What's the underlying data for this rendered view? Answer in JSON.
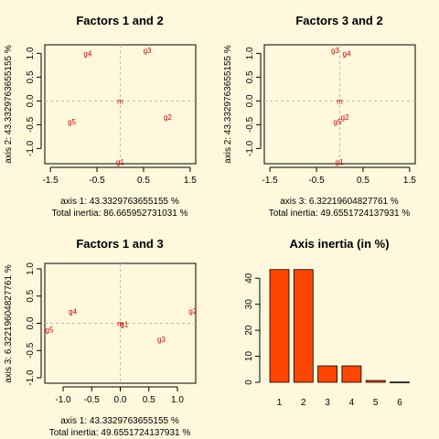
{
  "chart_data": [
    {
      "type": "scatter",
      "title": "Factors 1 and 2",
      "xlabel": "axis 1: 43.3329763655155 %",
      "ylabel": "axis 2: 43.3329763655155 %",
      "caption": "Total inertia: 86.665952731031 %",
      "xlim": [
        -1.62,
        1.62
      ],
      "ylim": [
        -1.32,
        1.18
      ],
      "xticks": [
        -1.5,
        -0.5,
        0.5,
        1.5
      ],
      "xticklabels": [
        "-1.5",
        "-0.5",
        "0.5",
        "1.5"
      ],
      "yticks": [
        -1.0,
        -0.5,
        0.0,
        0.5,
        1.0
      ],
      "yticklabels": [
        "-1.0",
        "-0.5",
        "0.0",
        "0.5",
        "1.0"
      ],
      "points": [
        {
          "label": "g4",
          "x": -0.7,
          "y": 1.0
        },
        {
          "label": "g3",
          "x": 0.58,
          "y": 1.06
        },
        {
          "label": "m",
          "x": 0.0,
          "y": 0.0
        },
        {
          "label": "g2",
          "x": 1.02,
          "y": -0.34
        },
        {
          "label": "g5",
          "x": -1.04,
          "y": -0.44
        },
        {
          "label": "g1",
          "x": 0.0,
          "y": -1.28
        }
      ]
    },
    {
      "type": "scatter",
      "title": "Factors 3 and 2",
      "xlabel": "axis 3: 6.32219604827761 %",
      "ylabel": "axis 2: 43.3329763655155 %",
      "caption": "Total inertia: 49.6551724137931 %",
      "xlim": [
        -1.62,
        1.62
      ],
      "ylim": [
        -1.32,
        1.18
      ],
      "xticks": [
        -1.5,
        -0.5,
        0.5,
        1.5
      ],
      "xticklabels": [
        "-1.5",
        "-0.5",
        "0.5",
        "1.5"
      ],
      "yticks": [
        -1.0,
        -0.5,
        0.0,
        0.5,
        1.0
      ],
      "yticklabels": [
        "-1.0",
        "-0.5",
        "0.0",
        "0.5",
        "1.0"
      ],
      "points": [
        {
          "label": "g3",
          "x": -0.1,
          "y": 1.06
        },
        {
          "label": "g4",
          "x": 0.15,
          "y": 1.0
        },
        {
          "label": "m",
          "x": 0.0,
          "y": 0.0
        },
        {
          "label": "g2",
          "x": 0.11,
          "y": -0.34
        },
        {
          "label": "g5",
          "x": -0.05,
          "y": -0.44
        },
        {
          "label": "g1",
          "x": -0.01,
          "y": -1.28
        }
      ]
    },
    {
      "type": "scatter",
      "title": "Factors 1 and 3",
      "xlabel": "axis 1: 43.3329763655155 %",
      "ylabel": "axis 3: 6.32219604827761 %",
      "caption": "Total inertia: 49.6551724137931 %",
      "xlim": [
        -1.32,
        1.32
      ],
      "ylim": [
        -1.1,
        1.1
      ],
      "xticks": [
        -1.0,
        -0.5,
        0.0,
        0.5,
        1.0
      ],
      "xticklabels": [
        "-1.0",
        "-0.5",
        "0.0",
        "0.5",
        "1.0"
      ],
      "yticks": [
        -1.0,
        -0.5,
        0.0,
        0.5,
        1.0
      ],
      "yticklabels": [
        "-1.0",
        "-0.5",
        "0.0",
        "0.5",
        "1.0"
      ],
      "points": [
        {
          "label": "g4",
          "x": -0.83,
          "y": 0.22
        },
        {
          "label": "m",
          "x": 0.0,
          "y": 0.0
        },
        {
          "label": "g1",
          "x": 0.07,
          "y": -0.02
        },
        {
          "label": "g5",
          "x": -1.24,
          "y": -0.12
        },
        {
          "label": "g3",
          "x": 0.72,
          "y": -0.29
        },
        {
          "label": "g2",
          "x": 1.27,
          "y": 0.23
        }
      ]
    },
    {
      "type": "bar",
      "title": "Axis inertia (in %)",
      "categories": [
        "1",
        "2",
        "3",
        "4",
        "5",
        "6"
      ],
      "values": [
        43.33,
        43.33,
        6.32,
        6.32,
        0.69,
        0.1
      ],
      "ylim": [
        0,
        45
      ],
      "yticks": [
        0,
        10,
        20,
        30,
        40
      ],
      "yticklabels": [
        "0",
        "10",
        "20",
        "30",
        "40"
      ],
      "color": "#ff4500"
    }
  ]
}
